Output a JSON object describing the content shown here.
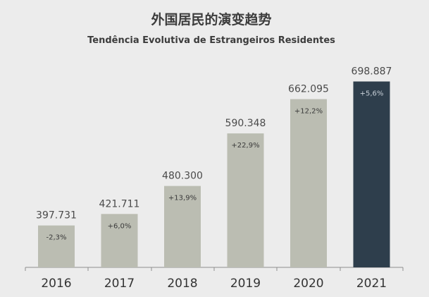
{
  "chart_data": {
    "type": "bar",
    "title": "外国居民的演变趋势",
    "subtitle": "Tendência Evolutiva de Estrangeiros Residentes",
    "xlabel": "",
    "ylabel": "",
    "categories": [
      "2016",
      "2017",
      "2018",
      "2019",
      "2020",
      "2021"
    ],
    "values": [
      397731,
      421711,
      480300,
      590348,
      662095,
      698887
    ],
    "value_labels": [
      "397.731",
      "421.711",
      "480.300",
      "590.348",
      "662.095",
      "698.887"
    ],
    "change_labels": [
      "-2,3%",
      "+6,0%",
      "+13,9%",
      "+22,9%",
      "+12,2%",
      "+5,6%"
    ],
    "highlight_index": 5,
    "ylim": [
      310000,
      710000
    ],
    "grid": false,
    "legend": "none",
    "colors": {
      "bar": "#bbbdb2",
      "highlight_bar": "#2e3e4c",
      "change_text": "#3a3a3a",
      "change_text_highlight": "#c8d0d8",
      "value_text": "#4a4a4a",
      "title_text": "#3c3c3c",
      "axis": "#8e8e8e",
      "year_text": "#333333",
      "background": "#ececec"
    }
  }
}
